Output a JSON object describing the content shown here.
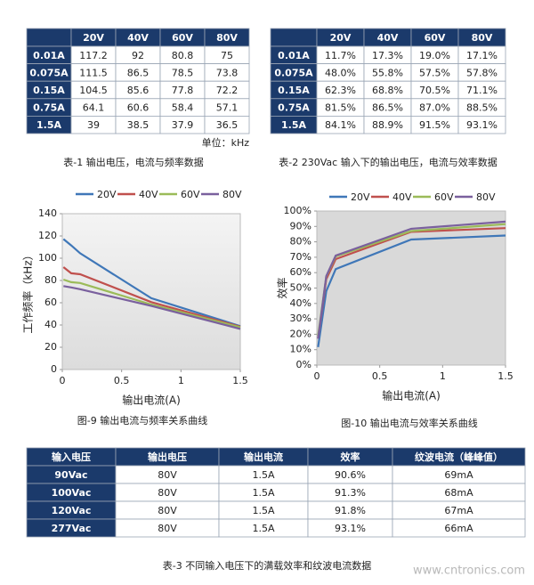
{
  "table1": {
    "header": [
      "20V",
      "40V",
      "60V",
      "80V"
    ],
    "rows": [
      [
        "0.01A",
        "117.2",
        "92",
        "80.8",
        "75"
      ],
      [
        "0.075A",
        "111.5",
        "86.5",
        "78.5",
        "73.8"
      ],
      [
        "0.15A",
        "104.5",
        "85.6",
        "77.8",
        "72.2"
      ],
      [
        "0.75A",
        "64.1",
        "60.6",
        "58.4",
        "57.1"
      ],
      [
        "1.5A",
        "39",
        "38.5",
        "37.9",
        "36.5"
      ]
    ],
    "unit": "单位：kHz",
    "caption": "表-1 输出电压，电流与频率数据"
  },
  "table2": {
    "header": [
      "20V",
      "40V",
      "60V",
      "80V"
    ],
    "rows": [
      [
        "0.01A",
        "11.7%",
        "17.3%",
        "19.0%",
        "17.1%"
      ],
      [
        "0.075A",
        "48.0%",
        "55.8%",
        "57.5%",
        "57.8%"
      ],
      [
        "0.15A",
        "62.3%",
        "68.8%",
        "70.5%",
        "71.1%"
      ],
      [
        "0.75A",
        "81.5%",
        "86.5%",
        "87.0%",
        "88.5%"
      ],
      [
        "1.5A",
        "84.1%",
        "88.9%",
        "91.5%",
        "93.1%"
      ]
    ],
    "caption": "表-2  230Vac 输入下的输出电压，电流与效率数据"
  },
  "chart_data": [
    {
      "type": "line",
      "caption": "图-9  输出电流与频率关系曲线",
      "x_label": "输出电流(A)",
      "y_label": "工作频率（kHz）",
      "x": [
        0.01,
        0.075,
        0.15,
        0.75,
        1.5
      ],
      "series": [
        {
          "name": "20V",
          "color": "#3f77b8",
          "values": [
            117.2,
            111.5,
            104.5,
            64.1,
            39
          ]
        },
        {
          "name": "40V",
          "color": "#c0504d",
          "values": [
            92,
            86.5,
            85.6,
            60.6,
            38.5
          ]
        },
        {
          "name": "60V",
          "color": "#9bbb59",
          "values": [
            80.8,
            78.5,
            77.8,
            58.4,
            37.9
          ]
        },
        {
          "name": "80V",
          "color": "#7a609e",
          "values": [
            75,
            73.8,
            72.2,
            57.1,
            36.5
          ]
        }
      ],
      "xlim": [
        0,
        1.5
      ],
      "xticks": [
        0,
        0.5,
        1,
        1.5
      ],
      "ylim": [
        0,
        140
      ],
      "yticks": [
        0,
        20,
        40,
        60,
        80,
        100,
        120,
        140
      ],
      "grid": false
    },
    {
      "type": "line",
      "caption": "图-10 输出电流与效率关系曲线",
      "x_label": "输出电流(A)",
      "y_label": "效率",
      "x": [
        0.01,
        0.075,
        0.15,
        0.75,
        1.5
      ],
      "series": [
        {
          "name": "20V",
          "color": "#3f77b8",
          "values": [
            11.7,
            48.0,
            62.3,
            81.5,
            84.1
          ]
        },
        {
          "name": "40V",
          "color": "#c0504d",
          "values": [
            17.3,
            55.8,
            68.8,
            86.5,
            88.9
          ]
        },
        {
          "name": "60V",
          "color": "#9bbb59",
          "values": [
            19.0,
            57.5,
            70.5,
            87.0,
            91.5
          ]
        },
        {
          "name": "80V",
          "color": "#7a609e",
          "values": [
            17.1,
            57.8,
            71.1,
            88.5,
            93.1
          ]
        }
      ],
      "xlim": [
        0,
        1.5
      ],
      "xticks": [
        0,
        0.5,
        1,
        1.5
      ],
      "ylim": [
        0,
        100
      ],
      "yticks": [
        {
          "value": 0,
          "label": "0%"
        },
        {
          "value": 10,
          "label": "10%"
        },
        {
          "value": 20,
          "label": "20%"
        },
        {
          "value": 30,
          "label": "30%"
        },
        {
          "value": 40,
          "label": "40%"
        },
        {
          "value": 50,
          "label": "50%"
        },
        {
          "value": 60,
          "label": "60%"
        },
        {
          "value": 70,
          "label": "70%"
        },
        {
          "value": 80,
          "label": "80%"
        },
        {
          "value": 90,
          "label": "90%"
        },
        {
          "value": 100,
          "label": "100%"
        }
      ],
      "grid": false
    }
  ],
  "table3": {
    "header": [
      "输入电压",
      "输出电压",
      "输出电流",
      "效率",
      "纹波电流（峰峰值）"
    ],
    "rows": [
      [
        "90Vac",
        "80V",
        "1.5A",
        "90.6%",
        "69mA"
      ],
      [
        "100Vac",
        "80V",
        "1.5A",
        "91.3%",
        "68mA"
      ],
      [
        "120Vac",
        "80V",
        "1.5A",
        "91.8%",
        "67mA"
      ],
      [
        "277Vac",
        "80V",
        "1.5A",
        "93.1%",
        "66mA"
      ]
    ],
    "caption": "表-3  不同输入电压下的满载效率和纹波电流数据"
  },
  "watermark": "www.cntronics.com"
}
